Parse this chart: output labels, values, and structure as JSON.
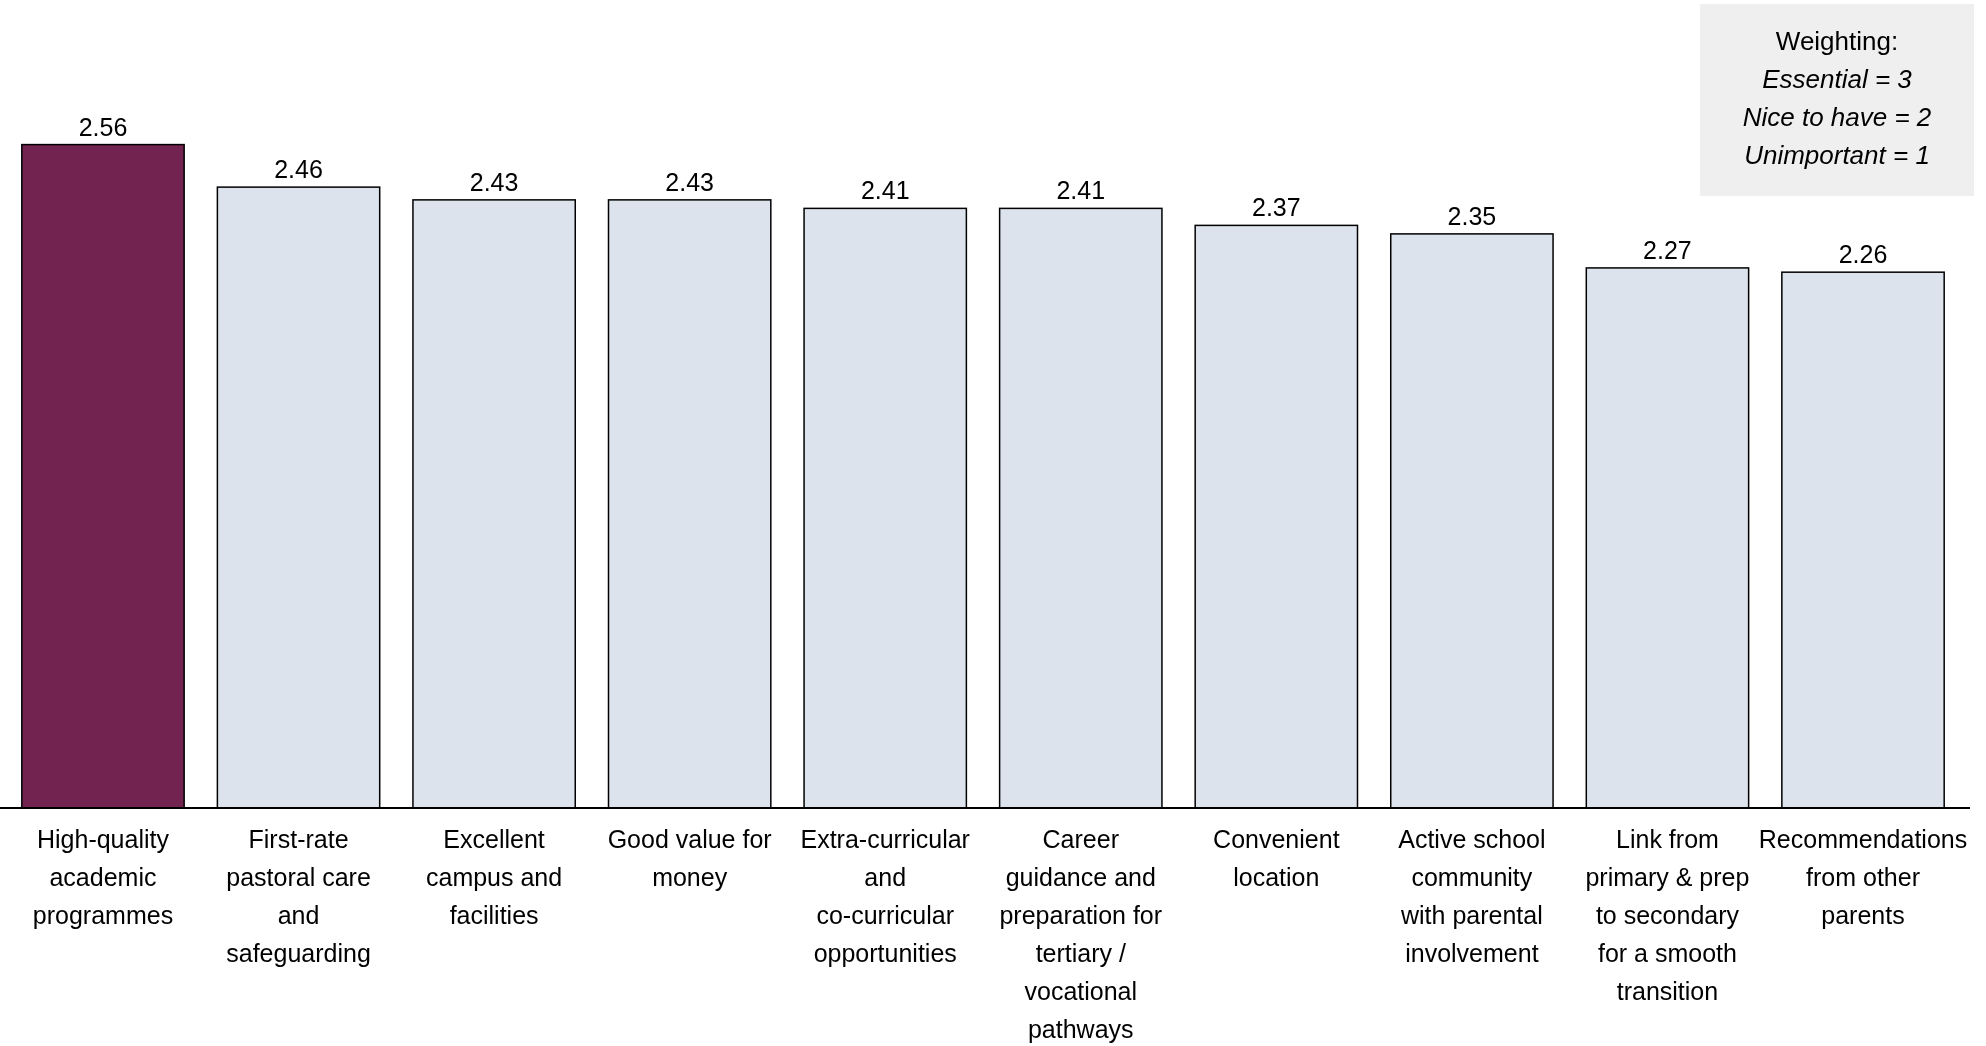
{
  "chart_data": {
    "type": "bar",
    "categories": [
      "High-quality academic programmes",
      "First-rate pastoral care and safeguarding",
      "Excellent campus and facilities",
      "Good value for money",
      "Extra-curricular and co-curricular opportunities",
      "Career guidance and preparation for tertiary / vocational pathways",
      "Convenient location",
      "Active school community with parental involvement",
      "Link from primary & prep to secondary for a smooth transition",
      "Recommendations from other parents"
    ],
    "values": [
      2.56,
      2.46,
      2.43,
      2.43,
      2.41,
      2.41,
      2.37,
      2.35,
      2.27,
      2.26
    ],
    "colors": [
      "#722350",
      "#dde3ed",
      "#dde3ed",
      "#dde3ed",
      "#dde3ed",
      "#dde3ed",
      "#dde3ed",
      "#dde3ed",
      "#dde3ed",
      "#dde3ed"
    ],
    "ylim": [
      1,
      2.9
    ],
    "data_labels": true,
    "tick_labels": "x",
    "annotations": [
      "Weighting:",
      "Essential = 3",
      "Nice to have = 2",
      "Unimportant = 1"
    ]
  }
}
